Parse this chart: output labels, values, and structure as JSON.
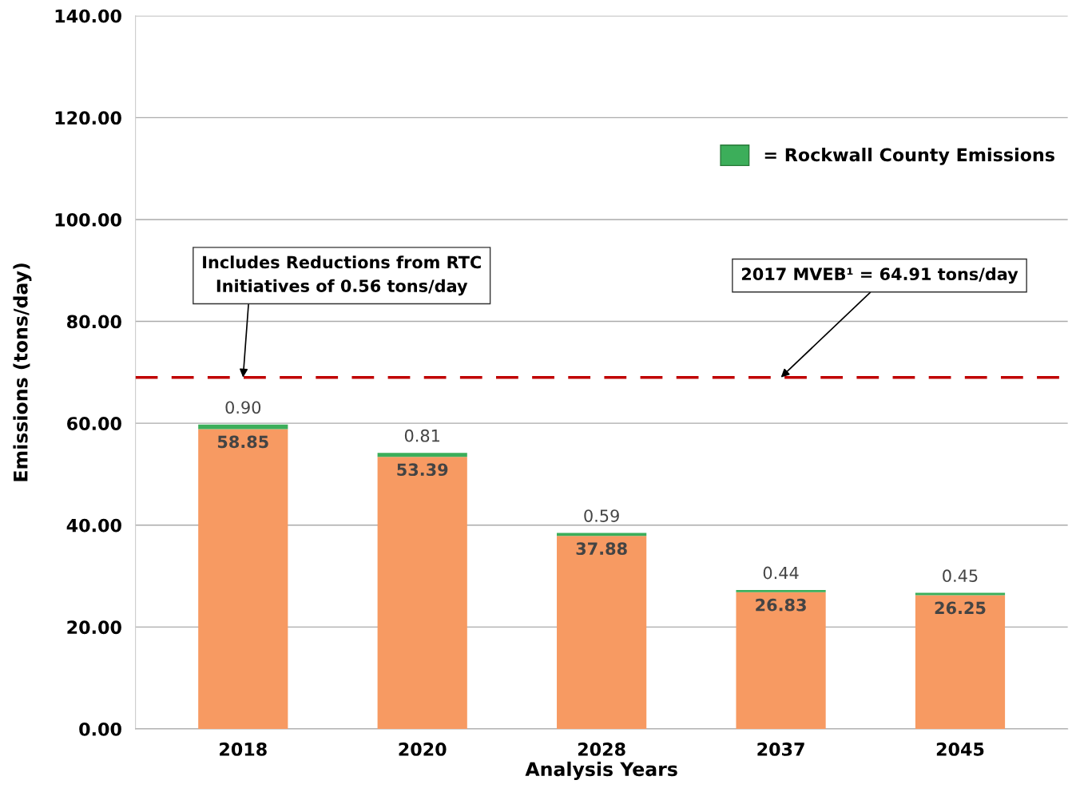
{
  "chart_data": {
    "type": "bar",
    "stacked": true,
    "xlabel": "Analysis Years",
    "ylabel": "Emissions (tons/day)",
    "categories": [
      "2018",
      "2020",
      "2028",
      "2037",
      "2045"
    ],
    "series": [
      {
        "color": "#f79a62",
        "values": [
          58.85,
          53.39,
          37.88,
          26.83,
          26.25
        ],
        "value_labels": [
          "58.85",
          "53.39",
          "37.88",
          "26.83",
          "26.25"
        ]
      },
      {
        "name": "= Rockwall County Emissions",
        "color": "#3cae5a",
        "values": [
          0.9,
          0.81,
          0.59,
          0.44,
          0.45
        ],
        "value_labels": [
          "0.90",
          "0.81",
          "0.59",
          "0.44",
          "0.45"
        ]
      }
    ],
    "ylim": [
      0,
      140
    ],
    "yticks": [
      {
        "value": 0,
        "label": "0.00"
      },
      {
        "value": 20,
        "label": "20.00"
      },
      {
        "value": 40,
        "label": "40.00"
      },
      {
        "value": 60,
        "label": "60.00"
      },
      {
        "value": 80,
        "label": "80.00"
      },
      {
        "value": 100,
        "label": "100.00"
      },
      {
        "value": 120,
        "label": "120.00"
      },
      {
        "value": 140,
        "label": "140.00"
      }
    ],
    "grid": "y",
    "legend": "top right",
    "ref_lines": [
      {
        "axis": "y",
        "value": 69,
        "label": null,
        "color": "#c00000",
        "line_style": "dashed"
      }
    ],
    "annotations": [
      {
        "text": "Includes Reductions from RTC\nInitiatives of 0.56 tons/day",
        "x": "2018",
        "y": 69
      },
      {
        "text": "2017 MVEB¹ = 64.91 tons/day",
        "x": "2037",
        "y": 69
      }
    ]
  }
}
